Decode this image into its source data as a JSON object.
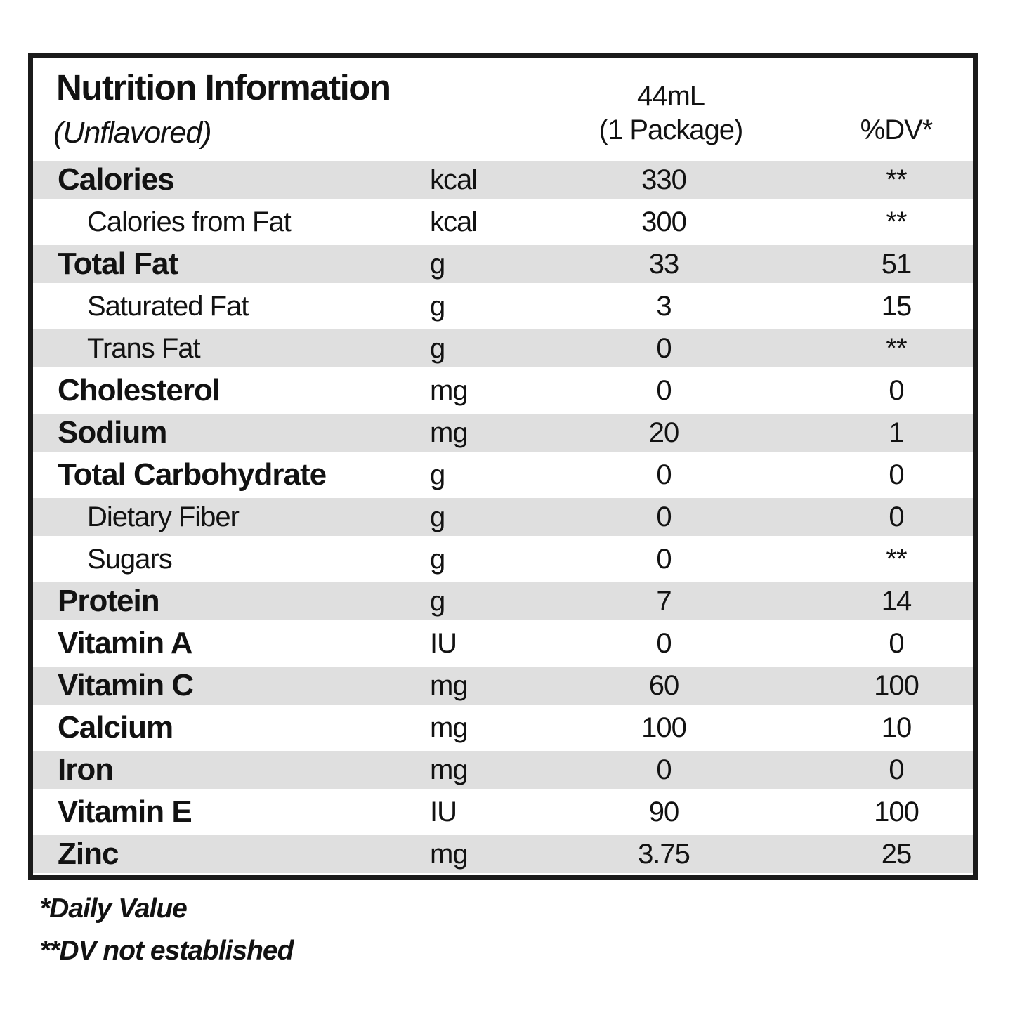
{
  "header": {
    "title": "Nutrition Information",
    "subtitle": "(Unflavored)",
    "serving_size": "44mL",
    "serving_unit": "(1 Package)",
    "dv_label": "%DV*"
  },
  "rows": [
    {
      "name": "Calories",
      "unit": "kcal",
      "amount": "330",
      "dv": "**",
      "indent": false
    },
    {
      "name": "Calories from Fat",
      "unit": "kcal",
      "amount": "300",
      "dv": "**",
      "indent": true
    },
    {
      "name": "Total Fat",
      "unit": "g",
      "amount": "33",
      "dv": "51",
      "indent": false
    },
    {
      "name": "Saturated Fat",
      "unit": "g",
      "amount": "3",
      "dv": "15",
      "indent": true
    },
    {
      "name": "Trans Fat",
      "unit": "g",
      "amount": "0",
      "dv": "**",
      "indent": true
    },
    {
      "name": "Cholesterol",
      "unit": "mg",
      "amount": "0",
      "dv": "0",
      "indent": false
    },
    {
      "name": "Sodium",
      "unit": "mg",
      "amount": "20",
      "dv": "1",
      "indent": false
    },
    {
      "name": "Total Carbohydrate",
      "unit": "g",
      "amount": "0",
      "dv": "0",
      "indent": false
    },
    {
      "name": "Dietary Fiber",
      "unit": "g",
      "amount": "0",
      "dv": "0",
      "indent": true
    },
    {
      "name": "Sugars",
      "unit": "g",
      "amount": "0",
      "dv": "**",
      "indent": true
    },
    {
      "name": "Protein",
      "unit": "g",
      "amount": "7",
      "dv": "14",
      "indent": false
    },
    {
      "name": "Vitamin A",
      "unit": "IU",
      "amount": "0",
      "dv": "0",
      "indent": false
    },
    {
      "name": "Vitamin C",
      "unit": "mg",
      "amount": "60",
      "dv": "100",
      "indent": false
    },
    {
      "name": "Calcium",
      "unit": "mg",
      "amount": "100",
      "dv": "10",
      "indent": false
    },
    {
      "name": "Iron",
      "unit": "mg",
      "amount": "0",
      "dv": "0",
      "indent": false
    },
    {
      "name": "Vitamin E",
      "unit": "IU",
      "amount": "90",
      "dv": "100",
      "indent": false
    },
    {
      "name": "Zinc",
      "unit": "mg",
      "amount": "3.75",
      "dv": "25",
      "indent": false
    }
  ],
  "footnotes": [
    "*Daily Value",
    "**DV not established"
  ],
  "colors": {
    "stripe": "#dfdfdf",
    "border": "#1b1b1b",
    "text": "#121212"
  }
}
